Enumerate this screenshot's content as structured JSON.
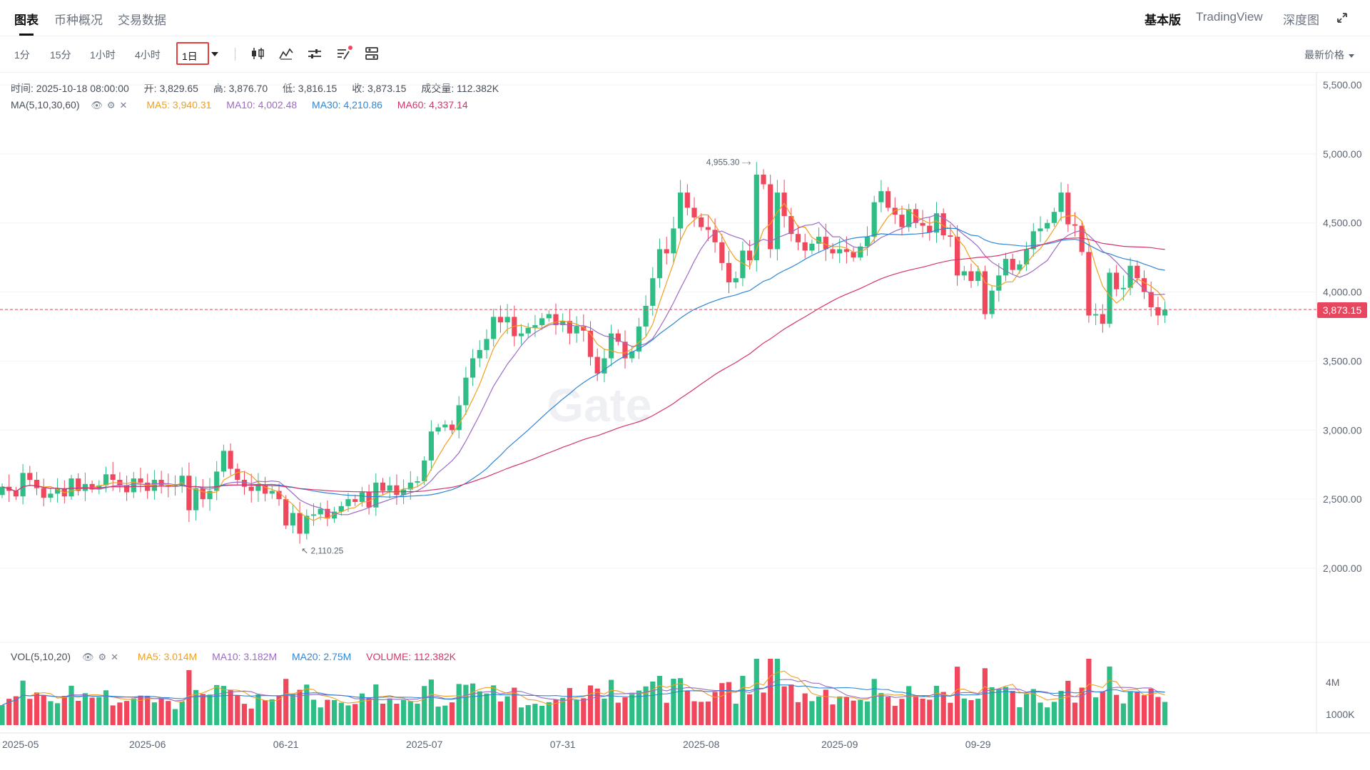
{
  "tabs": {
    "chart": "图表",
    "overview": "币种概况",
    "trading_data": "交易数据"
  },
  "right_tabs": {
    "basic": "基本版",
    "tradingview": "TradingView",
    "depth": "深度图"
  },
  "timeframes": [
    "1分",
    "15分",
    "1小时",
    "4小时"
  ],
  "active_timeframe": "1日",
  "price_type": "最新价格",
  "ohlc": {
    "time": "时间: 2025-10-18 08:00:00",
    "open": "开: 3,829.65",
    "high": "高: 3,876.70",
    "low": "低: 3,816.15",
    "close": "收: 3,873.15",
    "volume": "成交量: 112.382K"
  },
  "ma_legend": {
    "label": "MA(5,10,30,60)",
    "ma5": "MA5: 3,940.31",
    "ma10": "MA10: 4,002.48",
    "ma30": "MA30: 4,210.86",
    "ma60": "MA60: 4,337.14"
  },
  "vol_legend": {
    "label": "VOL(5,10,20)",
    "ma5": "MA5: 3.014M",
    "ma10": "MA10: 3.182M",
    "ma20": "MA20: 2.75M",
    "volume": "VOLUME: 112.382K"
  },
  "colors": {
    "up": "#2ebd85",
    "down": "#f0475d",
    "ma5": "#f0a020",
    "ma10": "#9b6bc4",
    "ma30": "#2f86d6",
    "ma60": "#d6336c"
  },
  "last_price": "3,873.15",
  "watermark": "Gate",
  "chart_data": {
    "type": "candlestick",
    "y_axis": {
      "labels": [
        "5,500.00",
        "5,000.00",
        "4,500.00",
        "4,000.00",
        "3,500.00",
        "3,000.00",
        "2,500.00",
        "2,000.00"
      ],
      "values": [
        5500,
        5000,
        4500,
        4000,
        3500,
        3000,
        2500,
        2000
      ],
      "range": [
        1650,
        5750
      ]
    },
    "volume_axis": {
      "labels": [
        "4M",
        "1000K"
      ],
      "values": [
        4000000,
        1000000
      ]
    },
    "x_axis": {
      "labels": [
        "2025-05",
        "2025-06",
        "06-21",
        "2025-07",
        "07-31",
        "2025-08",
        "2025-09",
        "09-29"
      ],
      "index": [
        0,
        21,
        41,
        61,
        81,
        101,
        121,
        141
      ]
    },
    "high_annotation": "4,955.30",
    "low_annotation": "2,110.25",
    "closes": [
      2590,
      2560,
      2520,
      2690,
      2640,
      2580,
      2510,
      2540,
      2580,
      2520,
      2650,
      2560,
      2610,
      2570,
      2600,
      2680,
      2640,
      2600,
      2550,
      2650,
      2620,
      2560,
      2640,
      2600,
      2590,
      2600,
      2670,
      2420,
      2580,
      2500,
      2560,
      2700,
      2850,
      2720,
      2640,
      2590,
      2560,
      2600,
      2540,
      2560,
      2500,
      2310,
      2400,
      2250,
      2380,
      2390,
      2430,
      2360,
      2410,
      2450,
      2500,
      2480,
      2550,
      2440,
      2620,
      2560,
      2600,
      2530,
      2570,
      2620,
      2630,
      2780,
      2990,
      3020,
      3040,
      3000,
      3180,
      3380,
      3520,
      3580,
      3660,
      3820,
      3780,
      3820,
      3680,
      3700,
      3740,
      3760,
      3810,
      3840,
      3760,
      3790,
      3700,
      3750,
      3720,
      3530,
      3410,
      3520,
      3700,
      3640,
      3520,
      3570,
      3750,
      3900,
      4100,
      4310,
      4280,
      4460,
      4720,
      4610,
      4540,
      4470,
      4450,
      4360,
      4210,
      4070,
      4100,
      4300,
      4230,
      4850,
      4780,
      4310,
      4720,
      4550,
      4420,
      4360,
      4300,
      4350,
      4400,
      4310,
      4280,
      4310,
      4290,
      4250,
      4330,
      4400,
      4650,
      4730,
      4610,
      4560,
      4470,
      4600,
      4500,
      4480,
      4430,
      4570,
      4410,
      4400,
      4120,
      4150,
      4080,
      4150,
      3840,
      4010,
      4120,
      4240,
      4160,
      4200,
      4310,
      4440,
      4460,
      4500,
      4580,
      4720,
      4490,
      4480,
      4290,
      3830,
      3840,
      3770,
      4140,
      4020,
      4030,
      4190,
      4100,
      4000,
      3890,
      3830,
      3873
    ]
  }
}
